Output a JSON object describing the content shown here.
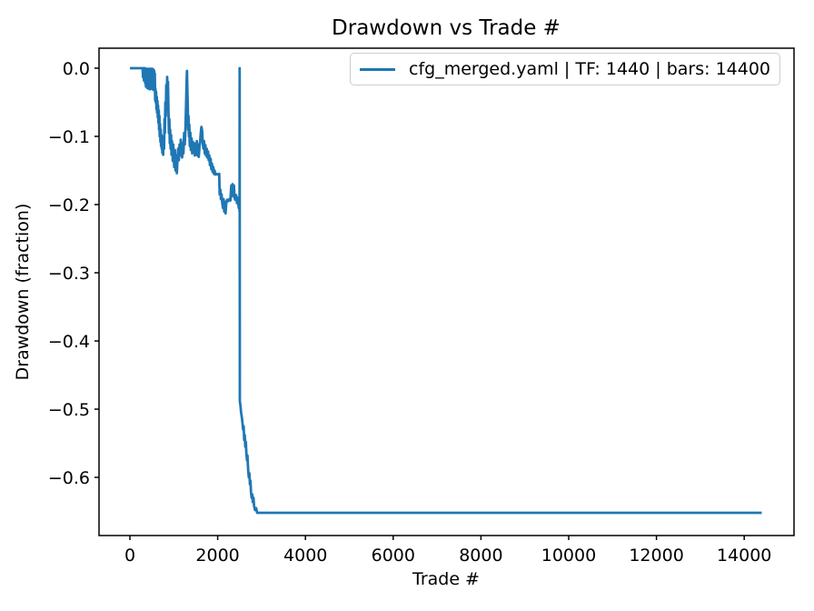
{
  "title": "Drawdown vs Trade #",
  "legend": {
    "label": "cfg_merged.yaml | TF: 1440 | bars: 14400",
    "line_color": "#1f77b4",
    "border_color": "#cccccc"
  },
  "colors": {
    "line": "#1f77b4",
    "spine": "#000000",
    "background": "#ffffff"
  },
  "chart_data": {
    "type": "line",
    "title": "Drawdown vs Trade #",
    "xlabel": "Trade #",
    "ylabel": "Drawdown (fraction)",
    "xlim": [
      -704,
      15135
    ],
    "ylim": [
      -0.6853,
      0.0293
    ],
    "x_ticks": [
      0,
      2000,
      4000,
      6000,
      8000,
      10000,
      12000,
      14000
    ],
    "x_tick_labels": [
      "0",
      "2000",
      "4000",
      "6000",
      "8000",
      "10000",
      "12000",
      "14000"
    ],
    "y_ticks": [
      0.0,
      -0.1,
      -0.2,
      -0.3,
      -0.4,
      -0.5,
      -0.6
    ],
    "y_tick_labels": [
      "0.0",
      "−0.1",
      "−0.2",
      "−0.3",
      "−0.4",
      "−0.5",
      "−0.6"
    ],
    "grid": false,
    "legend_position": "upper right",
    "series": [
      {
        "name": "cfg_merged.yaml | TF: 1440 | bars: 14400",
        "color": "#1f77b4",
        "points": [
          [
            0,
            0
          ],
          [
            290,
            0
          ],
          [
            298,
            -0.013
          ],
          [
            303,
            0
          ],
          [
            320,
            -0.018
          ],
          [
            325,
            0
          ],
          [
            342,
            0
          ],
          [
            350,
            -0.022
          ],
          [
            357,
            -0.001
          ],
          [
            365,
            -0.027
          ],
          [
            372,
            -0.002
          ],
          [
            380,
            -0.025
          ],
          [
            387,
            -0.001
          ],
          [
            395,
            -0.029
          ],
          [
            402,
            -0.002
          ],
          [
            410,
            -0.026
          ],
          [
            417,
            -0.001
          ],
          [
            425,
            -0.03
          ],
          [
            432,
            -0.002
          ],
          [
            440,
            -0.028
          ],
          [
            447,
            -0.001
          ],
          [
            455,
            -0.031
          ],
          [
            462,
            -0.002
          ],
          [
            470,
            -0.027
          ],
          [
            477,
            -0.001
          ],
          [
            485,
            -0.03
          ],
          [
            492,
            -0.002
          ],
          [
            500,
            -0.028
          ],
          [
            507,
            -0.001
          ],
          [
            515,
            -0.031
          ],
          [
            522,
            -0.003
          ],
          [
            530,
            -0.029
          ],
          [
            537,
            -0.002
          ],
          [
            545,
            -0.032
          ],
          [
            552,
            -0.004
          ],
          [
            560,
            -0.03
          ],
          [
            567,
            -0.008
          ],
          [
            575,
            -0.047
          ],
          [
            582,
            -0.03
          ],
          [
            590,
            -0.05
          ],
          [
            597,
            -0.035
          ],
          [
            605,
            -0.06
          ],
          [
            612,
            -0.042
          ],
          [
            620,
            -0.065
          ],
          [
            627,
            -0.048
          ],
          [
            635,
            -0.072
          ],
          [
            642,
            -0.055
          ],
          [
            650,
            -0.08
          ],
          [
            658,
            -0.062
          ],
          [
            665,
            -0.09
          ],
          [
            672,
            -0.07
          ],
          [
            680,
            -0.1
          ],
          [
            688,
            -0.082
          ],
          [
            695,
            -0.108
          ],
          [
            702,
            -0.09
          ],
          [
            710,
            -0.114
          ],
          [
            718,
            -0.098
          ],
          [
            725,
            -0.118
          ],
          [
            733,
            -0.105
          ],
          [
            740,
            -0.124
          ],
          [
            750,
            -0.115
          ],
          [
            758,
            -0.127
          ],
          [
            768,
            -0.1
          ],
          [
            778,
            -0.118
          ],
          [
            788,
            -0.075
          ],
          [
            798,
            -0.095
          ],
          [
            808,
            -0.05
          ],
          [
            818,
            -0.07
          ],
          [
            828,
            -0.025
          ],
          [
            838,
            -0.055
          ],
          [
            848,
            -0.013
          ],
          [
            858,
            -0.045
          ],
          [
            868,
            -0.02
          ],
          [
            878,
            -0.06
          ],
          [
            888,
            -0.095
          ],
          [
            898,
            -0.075
          ],
          [
            908,
            -0.11
          ],
          [
            918,
            -0.09
          ],
          [
            928,
            -0.118
          ],
          [
            938,
            -0.098
          ],
          [
            948,
            -0.127
          ],
          [
            958,
            -0.107
          ],
          [
            968,
            -0.118
          ],
          [
            978,
            -0.136
          ],
          [
            988,
            -0.112
          ],
          [
            998,
            -0.128
          ],
          [
            1010,
            -0.145
          ],
          [
            1025,
            -0.12
          ],
          [
            1040,
            -0.15
          ],
          [
            1055,
            -0.128
          ],
          [
            1070,
            -0.154
          ],
          [
            1085,
            -0.132
          ],
          [
            1100,
            -0.118
          ],
          [
            1115,
            -0.135
          ],
          [
            1130,
            -0.112
          ],
          [
            1145,
            -0.128
          ],
          [
            1160,
            -0.105
          ],
          [
            1175,
            -0.122
          ],
          [
            1190,
            -0.131
          ],
          [
            1205,
            -0.11
          ],
          [
            1220,
            -0.125
          ],
          [
            1235,
            -0.095
          ],
          [
            1250,
            -0.112
          ],
          [
            1265,
            -0.09
          ],
          [
            1280,
            -0.055
          ],
          [
            1292,
            -0.02
          ],
          [
            1300,
            -0.004
          ],
          [
            1310,
            -0.035
          ],
          [
            1318,
            -0.056
          ],
          [
            1328,
            -0.09
          ],
          [
            1336,
            -0.07
          ],
          [
            1345,
            -0.1
          ],
          [
            1355,
            -0.083
          ],
          [
            1365,
            -0.114
          ],
          [
            1378,
            -0.095
          ],
          [
            1390,
            -0.12
          ],
          [
            1405,
            -0.103
          ],
          [
            1420,
            -0.125
          ],
          [
            1435,
            -0.108
          ],
          [
            1450,
            -0.122
          ],
          [
            1465,
            -0.11
          ],
          [
            1480,
            -0.128
          ],
          [
            1495,
            -0.112
          ],
          [
            1510,
            -0.125
          ],
          [
            1525,
            -0.107
          ],
          [
            1540,
            -0.128
          ],
          [
            1555,
            -0.112
          ],
          [
            1570,
            -0.13
          ],
          [
            1585,
            -0.115
          ],
          [
            1600,
            -0.108
          ],
          [
            1615,
            -0.095
          ],
          [
            1630,
            -0.086
          ],
          [
            1645,
            -0.092
          ],
          [
            1660,
            -0.11
          ],
          [
            1675,
            -0.118
          ],
          [
            1690,
            -0.107
          ],
          [
            1705,
            -0.125
          ],
          [
            1720,
            -0.113
          ],
          [
            1735,
            -0.128
          ],
          [
            1750,
            -0.118
          ],
          [
            1765,
            -0.131
          ],
          [
            1780,
            -0.122
          ],
          [
            1795,
            -0.135
          ],
          [
            1810,
            -0.128
          ],
          [
            1825,
            -0.142
          ],
          [
            1840,
            -0.133
          ],
          [
            1855,
            -0.148
          ],
          [
            1870,
            -0.14
          ],
          [
            1885,
            -0.152
          ],
          [
            1900,
            -0.145
          ],
          [
            1915,
            -0.155
          ],
          [
            1930,
            -0.15
          ],
          [
            1945,
            -0.156
          ],
          [
            1975,
            -0.155
          ],
          [
            2005,
            -0.156
          ],
          [
            2035,
            -0.155
          ],
          [
            2045,
            -0.185
          ],
          [
            2060,
            -0.178
          ],
          [
            2075,
            -0.192
          ],
          [
            2090,
            -0.185
          ],
          [
            2105,
            -0.198
          ],
          [
            2120,
            -0.205
          ],
          [
            2135,
            -0.192
          ],
          [
            2150,
            -0.21
          ],
          [
            2165,
            -0.196
          ],
          [
            2180,
            -0.213
          ],
          [
            2195,
            -0.198
          ],
          [
            2215,
            -0.193
          ],
          [
            2240,
            -0.195
          ],
          [
            2265,
            -0.192
          ],
          [
            2290,
            -0.194
          ],
          [
            2310,
            -0.172
          ],
          [
            2325,
            -0.188
          ],
          [
            2340,
            -0.17
          ],
          [
            2355,
            -0.183
          ],
          [
            2370,
            -0.172
          ],
          [
            2385,
            -0.19
          ],
          [
            2400,
            -0.193
          ],
          [
            2420,
            -0.186
          ],
          [
            2440,
            -0.198
          ],
          [
            2460,
            -0.19
          ],
          [
            2480,
            -0.205
          ],
          [
            2492,
            -0.196
          ],
          [
            2498,
            -0.21
          ],
          [
            2502,
            0
          ],
          [
            2506,
            -0.488
          ],
          [
            2520,
            -0.495
          ],
          [
            2535,
            -0.505
          ],
          [
            2550,
            -0.512
          ],
          [
            2565,
            -0.52
          ],
          [
            2580,
            -0.53
          ],
          [
            2592,
            -0.525
          ],
          [
            2605,
            -0.545
          ],
          [
            2618,
            -0.538
          ],
          [
            2630,
            -0.555
          ],
          [
            2642,
            -0.548
          ],
          [
            2655,
            -0.565
          ],
          [
            2668,
            -0.575
          ],
          [
            2680,
            -0.568
          ],
          [
            2695,
            -0.59
          ],
          [
            2710,
            -0.6
          ],
          [
            2722,
            -0.594
          ],
          [
            2735,
            -0.61
          ],
          [
            2748,
            -0.605
          ],
          [
            2760,
            -0.622
          ],
          [
            2775,
            -0.63
          ],
          [
            2788,
            -0.625
          ],
          [
            2800,
            -0.636
          ],
          [
            2815,
            -0.63
          ],
          [
            2830,
            -0.642
          ],
          [
            2850,
            -0.648
          ],
          [
            2875,
            -0.645
          ],
          [
            2900,
            -0.652
          ],
          [
            2950,
            -0.652
          ],
          [
            14400,
            -0.652
          ]
        ]
      }
    ]
  }
}
